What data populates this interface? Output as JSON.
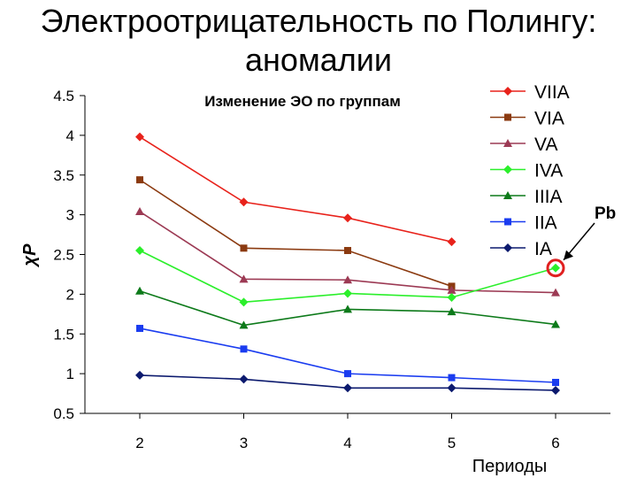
{
  "slide": {
    "title_line1": "Электроотрицательность по Полингу:",
    "title_line2": "аномалии"
  },
  "chart_data": {
    "type": "line",
    "title": "Изменение ЭО по группам",
    "xlabel": "Периоды",
    "ylabel": "χP",
    "x": [
      2,
      3,
      4,
      5,
      6
    ],
    "ylim": [
      0.5,
      4.5
    ],
    "yticks": [
      "0.5",
      "1",
      "1.5",
      "2",
      "2.5",
      "3",
      "3.5",
      "4",
      "4.5"
    ],
    "grid": false,
    "legend_position": "top-right",
    "series": [
      {
        "name": "VIIA",
        "color": "#e8221b",
        "marker": "diamond",
        "values": [
          3.98,
          3.16,
          2.96,
          2.66,
          null
        ]
      },
      {
        "name": "VIA",
        "color": "#8b3a10",
        "marker": "square",
        "values": [
          3.44,
          2.58,
          2.55,
          2.1,
          null
        ]
      },
      {
        "name": "VA",
        "color": "#9c3a54",
        "marker": "triangle",
        "values": [
          3.04,
          2.19,
          2.18,
          2.05,
          2.02
        ]
      },
      {
        "name": "IVA",
        "color": "#2bef2b",
        "marker": "diamond",
        "values": [
          2.55,
          1.9,
          2.01,
          1.96,
          2.33
        ]
      },
      {
        "name": "IIIA",
        "color": "#0d7a1a",
        "marker": "triangle",
        "values": [
          2.04,
          1.61,
          1.81,
          1.78,
          1.62
        ]
      },
      {
        "name": "IIA",
        "color": "#1a3cf0",
        "marker": "square",
        "values": [
          1.57,
          1.31,
          1.0,
          0.95,
          0.89
        ]
      },
      {
        "name": "IA",
        "color": "#0c1a6e",
        "marker": "diamond",
        "values": [
          0.98,
          0.93,
          0.82,
          0.82,
          0.79
        ]
      }
    ],
    "annotation": {
      "text": "Pb",
      "series": "IVA",
      "x": 6,
      "y": 2.33,
      "circle_color": "#e02020"
    }
  }
}
